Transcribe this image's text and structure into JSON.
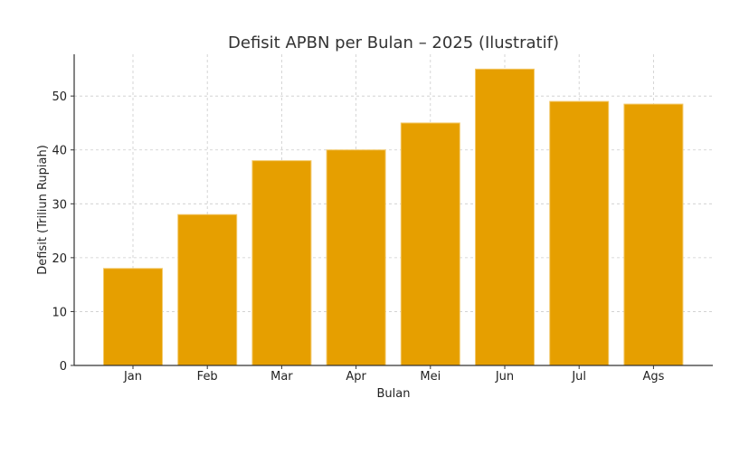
{
  "chart_data": {
    "type": "bar",
    "title": "Defisit APBN per Bulan – 2025 (Ilustratif)",
    "xlabel": "Bulan",
    "ylabel": "Defisit (Triliun Rupiah)",
    "categories": [
      "Jan",
      "Feb",
      "Mar",
      "Apr",
      "Mei",
      "Jun",
      "Jul",
      "Ags"
    ],
    "values": [
      18,
      28,
      38,
      40,
      45,
      55,
      49,
      48.5
    ],
    "ylim": [
      0,
      57.75
    ],
    "yticks": [
      0,
      10,
      20,
      30,
      40,
      50
    ],
    "grid": true,
    "bar_color": "#e69f00"
  }
}
